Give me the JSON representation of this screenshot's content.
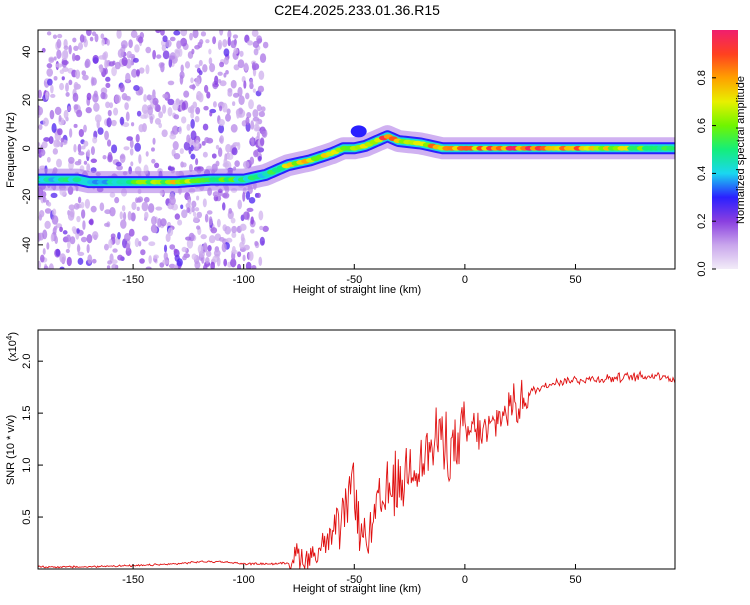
{
  "figure_title": "C2E4.2025.233.01.36.R15",
  "chart_data": [
    {
      "type": "heatmap",
      "xlabel": "Height of straight line (km)",
      "ylabel": "Frequency (Hz)",
      "xlim": [
        -193,
        95
      ],
      "ylim": [
        -50,
        49
      ],
      "xticks": [
        -150,
        -100,
        -50,
        0,
        50
      ],
      "xtick_labels": [
        "-150",
        "-100",
        "-50",
        "0",
        "50"
      ],
      "yticks": [
        -40,
        -20,
        0,
        20,
        40
      ],
      "ytick_labels": [
        "-40",
        "-20",
        "0",
        "20",
        "40"
      ],
      "colorbar": {
        "label": "Normalized spectral amplitude",
        "range": [
          0,
          1
        ],
        "ticks": [
          0.0,
          0.2,
          0.4,
          0.6,
          0.8
        ],
        "tick_labels": [
          "0.0",
          "0.2",
          "0.4",
          "0.6",
          "0.8"
        ],
        "colors": [
          "#f2ecf8",
          "#c9a6ec",
          "#8a3fe0",
          "#2a20ff",
          "#1ad7f0",
          "#14ee7a",
          "#70f500",
          "#e8f000",
          "#ffa000",
          "#ff4020",
          "#f01e6e"
        ]
      },
      "ridge": {
        "x": [
          -193,
          -175,
          -170,
          -160,
          -150,
          -130,
          -115,
          -100,
          -95,
          -90,
          -80,
          -70,
          -60,
          -55,
          -50,
          -45,
          -40,
          -35,
          -30,
          -20,
          -10,
          0,
          10,
          20,
          40,
          60,
          80,
          95
        ],
        "freq": [
          -13,
          -13,
          -14,
          -14,
          -14,
          -14,
          -13,
          -13,
          -12,
          -11,
          -7,
          -5,
          -2,
          0,
          0,
          1,
          3,
          5,
          3,
          2,
          0,
          0,
          0,
          0,
          0,
          0,
          0,
          0
        ],
        "amplitude": [
          0.45,
          0.45,
          0.35,
          0.45,
          0.55,
          0.7,
          0.55,
          0.5,
          0.45,
          0.5,
          0.65,
          0.7,
          0.7,
          0.6,
          0.65,
          0.7,
          0.8,
          0.85,
          0.75,
          0.7,
          0.85,
          0.9,
          0.8,
          0.95,
          0.85,
          0.75,
          0.6,
          0.55
        ]
      },
      "noise_band_x": [
        -193,
        -90
      ]
    },
    {
      "type": "line",
      "xlabel": "Height of straight line (km)",
      "ylabel": "SNR (10 * v/v)",
      "y_multiplier": "(x10",
      "y_multiplier_exp": "4",
      "y_multiplier_close": ")",
      "xlim": [
        -193,
        95
      ],
      "ylim": [
        0,
        2.3
      ],
      "xticks": [
        -150,
        -100,
        -50,
        0,
        50
      ],
      "xtick_labels": [
        "-150",
        "-100",
        "-50",
        "0",
        "50"
      ],
      "yticks": [
        0.5,
        1.0,
        1.5,
        2.0
      ],
      "ytick_labels": [
        "0.5",
        "1.0",
        "1.5",
        "2.0"
      ],
      "color": "#e01010",
      "series": [
        {
          "x": [
            -193,
            -180,
            -170,
            -160,
            -150,
            -140,
            -130,
            -120,
            -110,
            -100,
            -90,
            -85,
            -80,
            -76,
            -73,
            -70,
            -65,
            -60,
            -55,
            -52,
            -50,
            -48,
            -45,
            -42,
            -40,
            -36,
            -32,
            -30,
            -25,
            -20,
            -15,
            -10,
            -5,
            0,
            5,
            10,
            15,
            20,
            25,
            30,
            40,
            50,
            60,
            70,
            80,
            90,
            95
          ],
          "y": [
            0.02,
            0.02,
            0.02,
            0.03,
            0.03,
            0.04,
            0.05,
            0.07,
            0.07,
            0.05,
            0.05,
            0.05,
            0.06,
            0.15,
            0.1,
            0.12,
            0.2,
            0.3,
            0.45,
            0.7,
            0.95,
            0.4,
            0.28,
            0.35,
            0.55,
            0.65,
            0.85,
            0.75,
            1.0,
            1.05,
            1.15,
            1.3,
            1.1,
            1.3,
            1.35,
            1.3,
            1.45,
            1.55,
            1.6,
            1.7,
            1.8,
            1.82,
            1.83,
            1.84,
            1.85,
            1.87,
            1.8
          ]
        }
      ]
    }
  ]
}
